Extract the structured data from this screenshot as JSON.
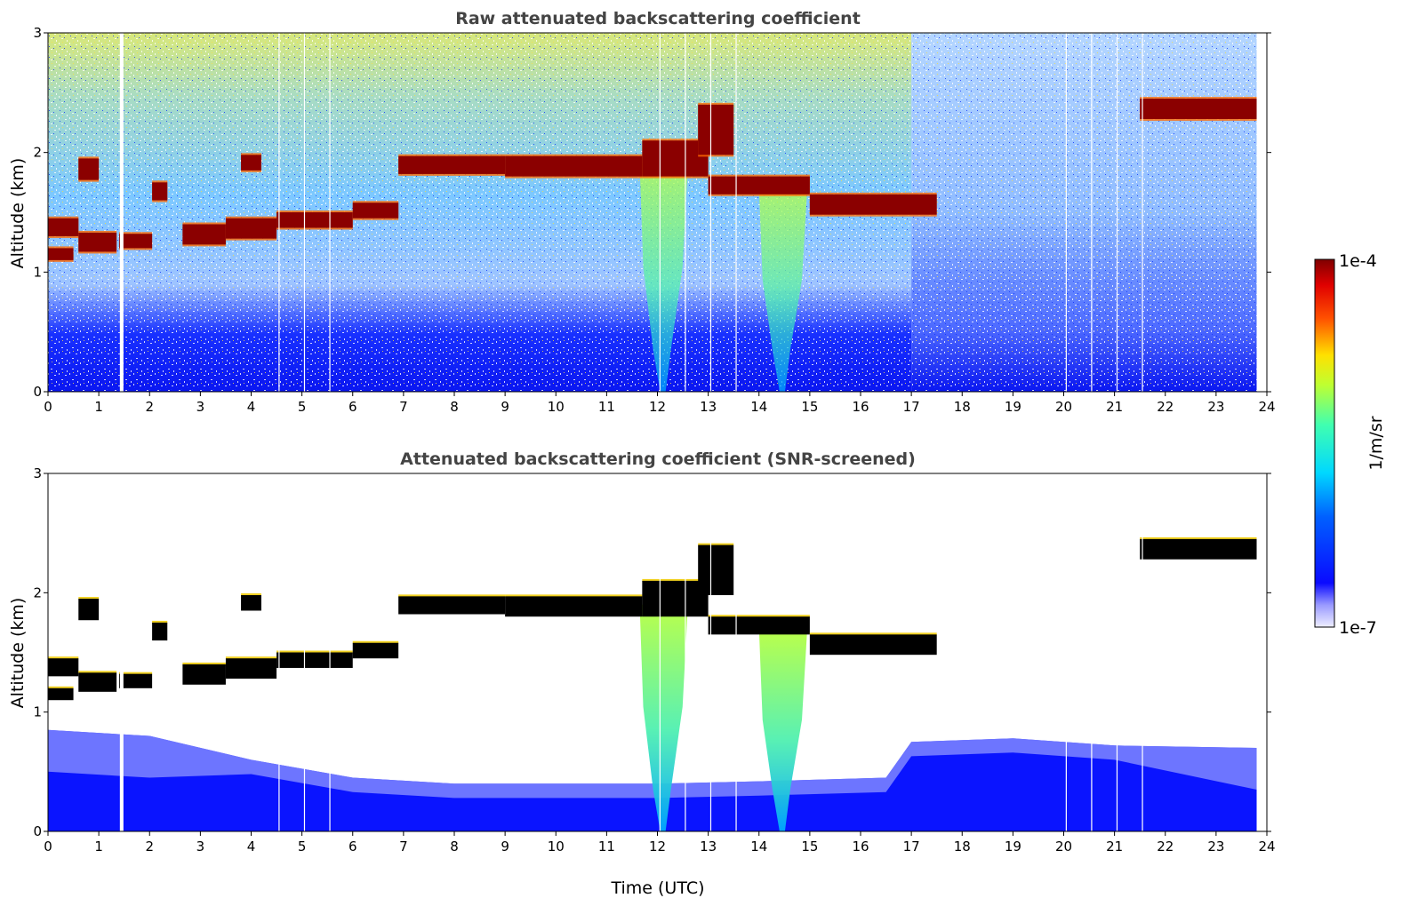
{
  "chart_data": [
    {
      "type": "heatmap",
      "title": "Raw attenuated backscattering coefficient",
      "xlabel": "",
      "ylabel": "Altitude (km)",
      "xlim": [
        0,
        24
      ],
      "ylim": [
        0,
        3
      ],
      "x_ticks": [
        0,
        1,
        2,
        3,
        4,
        5,
        6,
        7,
        8,
        9,
        10,
        11,
        12,
        13,
        14,
        15,
        16,
        17,
        18,
        19,
        20,
        21,
        22,
        23,
        24
      ],
      "y_ticks": [
        0,
        1,
        2,
        3
      ],
      "data_end_hour": 23.8,
      "data_gaps_hour": [
        1.45,
        4.55,
        5.05,
        5.55,
        12.05,
        12.55,
        13.05,
        13.55,
        20.05,
        20.55,
        21.05,
        21.55
      ],
      "cloud_layers": [
        {
          "start": 0.0,
          "end": 0.6,
          "base_km": 1.3,
          "top_km": 1.45
        },
        {
          "start": 0.0,
          "end": 0.5,
          "base_km": 1.1,
          "top_km": 1.2
        },
        {
          "start": 0.6,
          "end": 1.0,
          "base_km": 1.77,
          "top_km": 1.95
        },
        {
          "start": 0.6,
          "end": 1.35,
          "base_km": 1.17,
          "top_km": 1.33
        },
        {
          "start": 1.4,
          "end": 2.05,
          "base_km": 1.2,
          "top_km": 1.32
        },
        {
          "start": 2.05,
          "end": 2.35,
          "base_km": 1.6,
          "top_km": 1.75
        },
        {
          "start": 2.65,
          "end": 3.5,
          "base_km": 1.23,
          "top_km": 1.4
        },
        {
          "start": 3.5,
          "end": 4.5,
          "base_km": 1.28,
          "top_km": 1.45
        },
        {
          "start": 3.8,
          "end": 4.2,
          "base_km": 1.85,
          "top_km": 1.98
        },
        {
          "start": 4.5,
          "end": 6.0,
          "base_km": 1.37,
          "top_km": 1.5
        },
        {
          "start": 6.0,
          "end": 6.9,
          "base_km": 1.45,
          "top_km": 1.58
        },
        {
          "start": 6.9,
          "end": 9.0,
          "base_km": 1.82,
          "top_km": 1.97
        },
        {
          "start": 9.0,
          "end": 11.7,
          "base_km": 1.8,
          "top_km": 1.97
        },
        {
          "start": 11.7,
          "end": 13.0,
          "base_km": 1.8,
          "top_km": 2.1
        },
        {
          "start": 12.8,
          "end": 13.5,
          "base_km": 1.98,
          "top_km": 2.4
        },
        {
          "start": 13.0,
          "end": 15.0,
          "base_km": 1.65,
          "top_km": 1.8
        },
        {
          "start": 15.0,
          "end": 17.5,
          "base_km": 1.48,
          "top_km": 1.65
        },
        {
          "start": 21.5,
          "end": 23.8,
          "base_km": 2.28,
          "top_km": 2.45
        }
      ],
      "precipitation_streaks": [
        {
          "start": 11.65,
          "end": 12.6,
          "bottom_km": 0.0,
          "top_km": 1.9
        },
        {
          "start": 14.0,
          "end": 14.95,
          "bottom_km": 0.0,
          "top_km": 1.7
        }
      ]
    },
    {
      "type": "heatmap",
      "title": "Attenuated backscattering coefficient (SNR-screened)",
      "xlabel": "Time (UTC)",
      "ylabel": "Altitude (km)",
      "xlim": [
        0,
        24
      ],
      "ylim": [
        0,
        3
      ],
      "x_ticks": [
        0,
        1,
        2,
        3,
        4,
        5,
        6,
        7,
        8,
        9,
        10,
        11,
        12,
        13,
        14,
        15,
        16,
        17,
        18,
        19,
        20,
        21,
        22,
        23,
        24
      ],
      "y_ticks": [
        0,
        1,
        2,
        3
      ],
      "screened_boundary_km": [
        {
          "hour": 0,
          "km": 0.85
        },
        {
          "hour": 2,
          "km": 0.8
        },
        {
          "hour": 4,
          "km": 0.6
        },
        {
          "hour": 6,
          "km": 0.45
        },
        {
          "hour": 8,
          "km": 0.4
        },
        {
          "hour": 10,
          "km": 0.4
        },
        {
          "hour": 12,
          "km": 0.4
        },
        {
          "hour": 14,
          "km": 0.42
        },
        {
          "hour": 16.5,
          "km": 0.45
        },
        {
          "hour": 17,
          "km": 0.75
        },
        {
          "hour": 19,
          "km": 0.78
        },
        {
          "hour": 21,
          "km": 0.72
        },
        {
          "hour": 23.8,
          "km": 0.7
        }
      ]
    }
  ],
  "colorbar": {
    "label": "1/m/sr",
    "max_label": "1e-4",
    "min_label": "1e-7",
    "colormap": "jet"
  },
  "colors": {
    "cloud": "#8b0000",
    "cloud_screened": "#000000",
    "low_signal": "#0a1aff",
    "background": "#ffffff"
  }
}
